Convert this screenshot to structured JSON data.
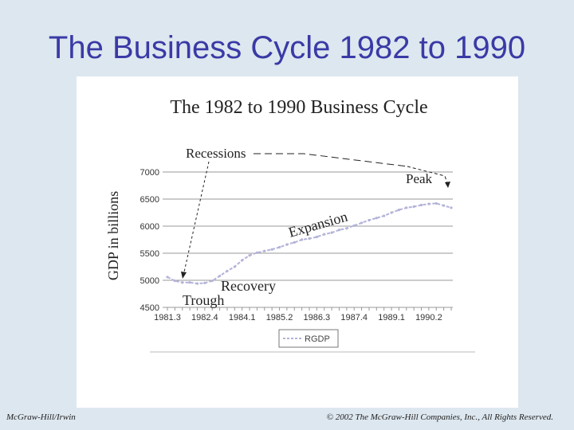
{
  "slide": {
    "title": "The Business Cycle 1982 to 1990",
    "footer_left": "McGraw-Hill/Irwin",
    "footer_right": "© 2002 The McGraw-Hill Companies, Inc., All Rights Reserved."
  },
  "colors": {
    "title": "#3a3aa6",
    "background": "#dde7ef",
    "series": "#b3b3d9",
    "grid": "#999999"
  },
  "chart_data": {
    "type": "line",
    "title": "The 1982 to 1990 Business Cycle",
    "ylabel": "GDP in billions",
    "xlabel": "",
    "ylim": [
      4500,
      7000
    ],
    "yticks": [
      4500,
      5000,
      5500,
      6000,
      6500,
      7000
    ],
    "grid": true,
    "legend_position": "bottom-center",
    "xtick_labels": [
      "1981.3",
      "1982.4",
      "1984.1",
      "1985.2",
      "1986.3",
      "1987.4",
      "1989.1",
      "1990.2"
    ],
    "x": [
      "1981.3",
      "1981.4",
      "1982.1",
      "1982.2",
      "1982.3",
      "1982.4",
      "1983.1",
      "1983.2",
      "1983.3",
      "1983.4",
      "1984.1",
      "1984.2",
      "1984.3",
      "1984.4",
      "1985.1",
      "1985.2",
      "1985.3",
      "1985.4",
      "1986.1",
      "1986.2",
      "1986.3",
      "1986.4",
      "1987.1",
      "1987.2",
      "1987.3",
      "1987.4",
      "1988.1",
      "1988.2",
      "1988.3",
      "1988.4",
      "1989.1",
      "1989.2",
      "1989.3",
      "1989.4",
      "1990.1",
      "1990.2",
      "1990.3",
      "1990.4",
      "1991.1"
    ],
    "series": [
      {
        "name": "RGDP",
        "values": [
          5060,
          4990,
          4960,
          4960,
          4940,
          4950,
          4990,
          5080,
          5170,
          5250,
          5370,
          5460,
          5510,
          5540,
          5570,
          5610,
          5660,
          5700,
          5750,
          5770,
          5800,
          5850,
          5880,
          5930,
          5960,
          6010,
          6060,
          6110,
          6150,
          6190,
          6250,
          6300,
          6340,
          6360,
          6390,
          6410,
          6420,
          6380,
          6340
        ]
      }
    ],
    "annotations": [
      "Recessions",
      "Peak",
      "Expansion",
      "Recovery",
      "Trough"
    ]
  }
}
